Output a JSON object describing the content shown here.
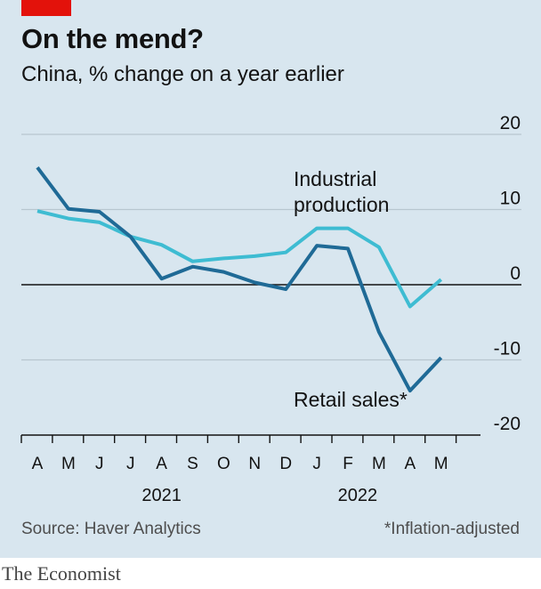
{
  "title": "On the mend?",
  "subtitle": "China, % change on a year earlier",
  "source": "Source: Haver Analytics",
  "footnote": "*Inflation-adjusted",
  "brand": "The Economist",
  "colors": {
    "background": "#d8e6ef",
    "accent_red": "#e3120b",
    "retail_sales": "#1f6a96",
    "industrial_production": "#3ebcd2",
    "gridline": "#b7c6cf",
    "zero_line": "#121212"
  },
  "chart_data": {
    "type": "line",
    "x": [
      "A",
      "M",
      "J",
      "J",
      "A",
      "S",
      "O",
      "N",
      "D",
      "J",
      "F",
      "M",
      "A",
      "M"
    ],
    "year_labels": [
      {
        "label": "2021",
        "start_index": 0,
        "end_index": 8
      },
      {
        "label": "2022",
        "start_index": 9,
        "end_index": 13
      }
    ],
    "series": [
      {
        "name": "Retail sales*",
        "color": "#1f6a96",
        "values": [
          15.6,
          10.1,
          9.7,
          6.4,
          0.8,
          2.4,
          1.7,
          0.3,
          -0.6,
          5.2,
          4.8,
          -6.3,
          -14.1,
          -9.7
        ]
      },
      {
        "name": "Industrial production",
        "label_lines": [
          "Industrial",
          "production"
        ],
        "color": "#3ebcd2",
        "values": [
          9.8,
          8.8,
          8.3,
          6.4,
          5.3,
          3.1,
          3.5,
          3.8,
          4.3,
          7.5,
          7.5,
          5.0,
          -2.9,
          0.7
        ]
      }
    ],
    "yticks": [
      20,
      10,
      0,
      -10,
      -20
    ],
    "ytick_labels": [
      "20",
      "10",
      "0",
      "-10",
      "-20"
    ],
    "ylim": [
      -20,
      20
    ],
    "grid": true,
    "xlabel": "",
    "ylabel": ""
  }
}
